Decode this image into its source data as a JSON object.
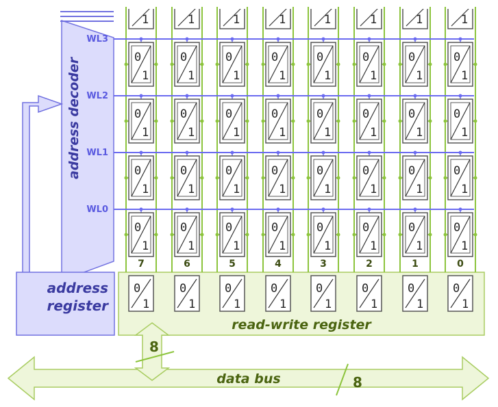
{
  "decoder": {
    "label": "address decoder"
  },
  "wordlines": [
    "WL3",
    "WL2",
    "WL1",
    "WL0"
  ],
  "columns": [
    "7",
    "6",
    "5",
    "4",
    "3",
    "2",
    "1",
    "0"
  ],
  "cell": {
    "top": "0",
    "bottom": "1"
  },
  "address_register": {
    "line1": "address",
    "line2": "register"
  },
  "rw_register": {
    "label": "read-write register"
  },
  "data_bus": {
    "label": "data bus",
    "width_label_bus": "8",
    "width_label_link": "8"
  },
  "colors": {
    "decoder_fill": "#dcdcfc",
    "decoder_stroke": "#7070e0",
    "wordline": "#6a6af0",
    "bitline": "#8cc43c",
    "register_fill": "#eef6da",
    "register_stroke": "#a8cc60",
    "cell_stroke": "#555555"
  }
}
